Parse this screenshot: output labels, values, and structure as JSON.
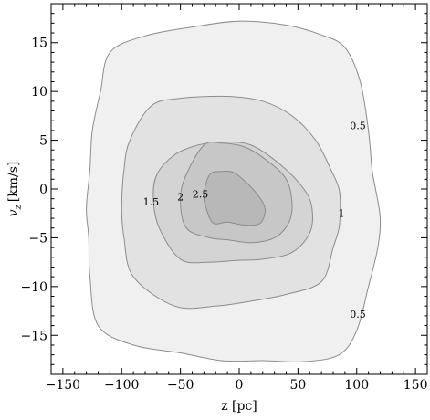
{
  "chart_data": {
    "type": "contour",
    "title": "",
    "xlabel": "z [pc]",
    "ylabel_main": "v",
    "ylabel_sub": "z",
    "ylabel_unit": "[km/s]",
    "xlim": [
      -160,
      160
    ],
    "ylim": [
      -19,
      19
    ],
    "xticks": [
      -150,
      -100,
      -50,
      0,
      50,
      100,
      150
    ],
    "yticks": [
      -15,
      -10,
      -5,
      0,
      5,
      10,
      15
    ],
    "xtick_labels": [
      "−150",
      "−100",
      "−50",
      "0",
      "50",
      "100",
      "150"
    ],
    "ytick_labels": [
      "−15",
      "−10",
      "−5",
      "0",
      "5",
      "10",
      "15"
    ],
    "grid": false,
    "levels": [
      {
        "label": "0.5",
        "value": 0.5,
        "fill": "#f0f0f0",
        "contour": [
          [
            -110,
            14
          ],
          [
            -80,
            15.7
          ],
          [
            -40,
            16.6
          ],
          [
            0,
            17.2
          ],
          [
            40,
            16.8
          ],
          [
            70,
            15.8
          ],
          [
            90,
            14.5
          ],
          [
            103,
            11
          ],
          [
            110,
            6
          ],
          [
            113,
            2
          ],
          [
            116,
            0
          ],
          [
            120,
            -3
          ],
          [
            118,
            -6
          ],
          [
            110,
            -10
          ],
          [
            100,
            -14.5
          ],
          [
            85,
            -17
          ],
          [
            55,
            -17.7
          ],
          [
            20,
            -17.6
          ],
          [
            -15,
            -17.6
          ],
          [
            -50,
            -16.8
          ],
          [
            -90,
            -16
          ],
          [
            -120,
            -14
          ],
          [
            -127,
            -9
          ],
          [
            -128,
            -5
          ],
          [
            -130,
            -2
          ],
          [
            -127,
            2
          ],
          [
            -125,
            6
          ],
          [
            -118,
            10
          ]
        ]
      },
      {
        "label": "1",
        "value": 1,
        "fill": "#e2e2e2",
        "contour": [
          [
            -75,
            8.5
          ],
          [
            -50,
            9.3
          ],
          [
            -10,
            9.5
          ],
          [
            20,
            9
          ],
          [
            45,
            7.5
          ],
          [
            65,
            5
          ],
          [
            78,
            2
          ],
          [
            85,
            0
          ],
          [
            86,
            -2
          ],
          [
            85,
            -4
          ],
          [
            80,
            -6
          ],
          [
            70,
            -9.5
          ],
          [
            40,
            -10.8
          ],
          [
            10,
            -11.5
          ],
          [
            -20,
            -12
          ],
          [
            -55,
            -12
          ],
          [
            -90,
            -9
          ],
          [
            -98,
            -5
          ],
          [
            -100,
            -2
          ],
          [
            -98,
            2
          ],
          [
            -93,
            5
          ]
        ]
      },
      {
        "label": "1.5",
        "value": 1.5,
        "fill": "#d4d4d4",
        "contour": [
          [
            -55,
            3.5
          ],
          [
            -35,
            4.5
          ],
          [
            -15,
            4.8
          ],
          [
            10,
            4.5
          ],
          [
            35,
            2.5
          ],
          [
            55,
            0
          ],
          [
            62,
            -2
          ],
          [
            60,
            -4.5
          ],
          [
            45,
            -6.5
          ],
          [
            20,
            -7.2
          ],
          [
            0,
            -7.3
          ],
          [
            -25,
            -7.5
          ],
          [
            -50,
            -7.2
          ],
          [
            -68,
            -4
          ],
          [
            -73,
            -1
          ],
          [
            -70,
            1.5
          ]
        ]
      },
      {
        "label": "2",
        "value": 2,
        "fill": "#c7c7c7",
        "contour": [
          [
            -30,
            4.5
          ],
          [
            -15,
            4.7
          ],
          [
            5,
            4.3
          ],
          [
            25,
            2.8
          ],
          [
            40,
            1
          ],
          [
            45,
            -1.5
          ],
          [
            42,
            -3.5
          ],
          [
            30,
            -5
          ],
          [
            10,
            -5.5
          ],
          [
            -10,
            -5.2
          ],
          [
            -25,
            -5
          ],
          [
            -45,
            -4
          ],
          [
            -50,
            -1
          ],
          [
            -45,
            1.5
          ]
        ]
      },
      {
        "label": "2.5",
        "value": 2.5,
        "fill": "#b8b8b8",
        "contour": [
          [
            -25,
            1.5
          ],
          [
            -15,
            1.8
          ],
          [
            -5,
            1.7
          ],
          [
            5,
            0.8
          ],
          [
            15,
            -0.5
          ],
          [
            22,
            -2
          ],
          [
            18,
            -3.5
          ],
          [
            5,
            -3.7
          ],
          [
            -10,
            -3.4
          ],
          [
            -22,
            -3.5
          ],
          [
            -28,
            -2
          ],
          [
            -30,
            -0.5
          ]
        ]
      }
    ],
    "contour_labels": [
      {
        "text": "0.5",
        "x": 101,
        "y": 6.5
      },
      {
        "text": "0.5",
        "x": 101,
        "y": -12.8
      },
      {
        "text": "1",
        "x": 87,
        "y": -2.5
      },
      {
        "text": "1.5",
        "x": -75,
        "y": -1.3
      },
      {
        "text": "2",
        "x": -50,
        "y": -0.8
      },
      {
        "text": "2.5",
        "x": -33,
        "y": -0.5
      }
    ],
    "colors": {
      "contour_stroke": "#8c8c8c",
      "frame": "#000000",
      "background": "#ffffff"
    }
  }
}
